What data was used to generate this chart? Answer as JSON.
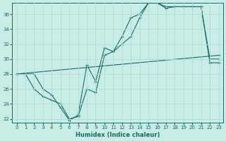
{
  "xlabel": "Humidex (Indice chaleur)",
  "ylabel": "",
  "xlim": [
    -0.5,
    23.5
  ],
  "ylim": [
    21.5,
    37.5
  ],
  "xticks": [
    0,
    1,
    2,
    3,
    4,
    5,
    6,
    7,
    8,
    9,
    10,
    11,
    12,
    13,
    14,
    15,
    16,
    17,
    18,
    19,
    20,
    21,
    22,
    23
  ],
  "yticks": [
    22,
    24,
    26,
    28,
    30,
    32,
    34,
    36
  ],
  "bg_color": "#c8ece6",
  "line_color": "#1a6b60",
  "grid_color": "#b0ddd6",
  "line1_x": [
    0,
    1,
    2,
    3,
    4,
    5,
    6,
    7,
    8,
    9,
    10,
    11,
    12,
    13,
    14,
    15,
    16,
    17,
    18,
    19,
    20,
    21,
    22,
    23
  ],
  "line1_y": [
    28.0,
    28.0,
    26.0,
    25.0,
    24.5,
    24.0,
    22.0,
    22.3,
    26.0,
    25.5,
    30.5,
    31.0,
    32.0,
    33.0,
    35.5,
    37.5,
    37.5,
    37.0,
    37.0,
    37.0,
    37.0,
    37.0,
    29.5,
    29.5
  ],
  "line2_x": [
    0,
    2,
    3,
    4,
    5,
    6,
    7,
    8,
    9,
    10,
    11,
    12,
    13,
    14,
    15,
    16,
    17,
    18,
    19,
    20,
    21,
    22,
    23
  ],
  "line2_y": [
    28.0,
    28.0,
    26.0,
    25.2,
    23.5,
    21.8,
    22.5,
    29.2,
    27.0,
    31.5,
    31.0,
    33.0,
    35.5,
    36.0,
    37.5,
    37.5,
    36.8,
    37.0,
    37.0,
    37.0,
    37.0,
    30.0,
    30.0
  ],
  "line3_x": [
    0,
    23
  ],
  "line3_y": [
    28.0,
    30.5
  ]
}
